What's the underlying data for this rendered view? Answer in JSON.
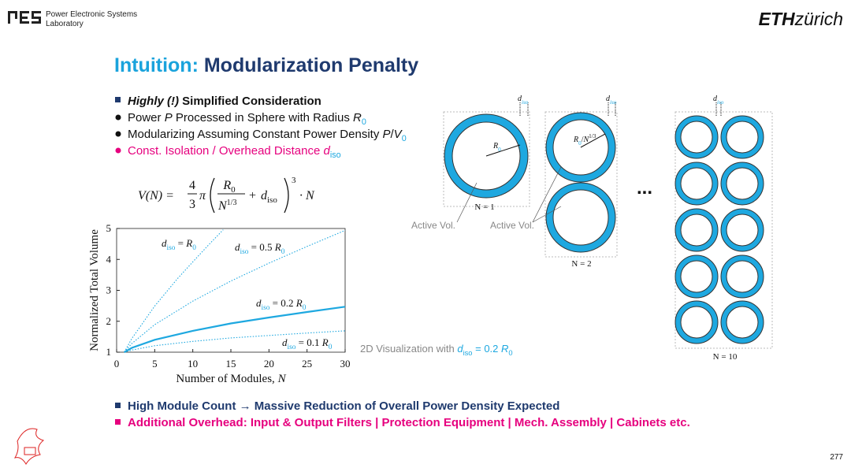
{
  "header": {
    "lab": [
      "Power Electronic Systems",
      "Laboratory"
    ],
    "logo_right": [
      "ETH",
      "zürich"
    ]
  },
  "title": {
    "prefix": "Intuition:",
    "main": "Modularization Penalty"
  },
  "bullets": [
    [
      "Highly (!)",
      " Simplified Consideration"
    ],
    [
      "Power ",
      "P",
      " Processed in Sphere with Radius ",
      "R",
      "0"
    ],
    [
      "Modularizing Assuming Constant Power Density ",
      "P",
      "/",
      "V",
      "0"
    ],
    [
      "Const. Isolation / Overhead Distance ",
      "d",
      "iso"
    ]
  ],
  "formula": {
    "lhs": "V(N) =",
    "num": "4",
    "den": "3",
    "pi": "π",
    "r": "R",
    "r_sub": "0",
    "n": "N",
    "n_exp": "1/3",
    "plus": "+",
    "d": "d",
    "d_sub": "iso",
    "exp": "3",
    "tail": "· N"
  },
  "chart_data": {
    "type": "line",
    "x_label": [
      "Number of Modules, ",
      "N"
    ],
    "y_label": "Normalized Total Volume",
    "xlim": [
      0,
      30
    ],
    "ylim": [
      1,
      5
    ],
    "xticks": [
      0,
      5,
      10,
      15,
      20,
      25,
      30
    ],
    "yticks": [
      1,
      2,
      3,
      4,
      5
    ],
    "color": "#1ea8e0",
    "series": [
      {
        "label": [
          "d",
          "iso",
          " = ",
          "R",
          "0"
        ],
        "style": "dotted",
        "x": [
          1,
          2,
          5,
          8,
          10,
          12,
          14
        ],
        "values": [
          1,
          1.44,
          2.49,
          3.38,
          3.92,
          4.45,
          4.96
        ]
      },
      {
        "label": [
          "d",
          "iso",
          " = 0.5 ",
          "R",
          "0"
        ],
        "style": "dotted",
        "x": [
          1,
          2,
          5,
          10,
          15,
          20,
          25,
          30
        ],
        "values": [
          1,
          1.28,
          1.89,
          2.65,
          3.3,
          3.88,
          4.42,
          4.94
        ]
      },
      {
        "label": [
          "d",
          "iso",
          " = 0.2 ",
          "R",
          "0"
        ],
        "style": "solid",
        "x": [
          1,
          2,
          5,
          10,
          15,
          20,
          25,
          30
        ],
        "values": [
          1,
          1.14,
          1.4,
          1.69,
          1.93,
          2.12,
          2.3,
          2.47
        ]
      },
      {
        "label": [
          "d",
          "iso",
          " = 0.1 ",
          "R",
          "0"
        ],
        "style": "dotted",
        "x": [
          1,
          2,
          5,
          10,
          15,
          20,
          25,
          30
        ],
        "values": [
          1,
          1.07,
          1.21,
          1.35,
          1.46,
          1.54,
          1.62,
          1.69
        ]
      }
    ]
  },
  "visualization_caption": [
    "2D Visualization with ",
    "d",
    "iso",
    " = 0.2 ",
    "R",
    "0"
  ],
  "diagram": {
    "d_iso_labels": [
      [
        "d",
        "iso"
      ],
      [
        "d",
        "iso"
      ],
      [
        "d",
        "iso"
      ]
    ],
    "radius_1": [
      "R",
      "0"
    ],
    "radius_2": [
      "R",
      "0",
      "/",
      "N",
      "1/3"
    ],
    "n_labels": [
      "N = 1",
      "N = 2",
      "N = 10"
    ],
    "active_labels": [
      "Active Vol.",
      "Active Vol."
    ],
    "ellipsis": "..."
  },
  "footer_bullets": [
    "High Module Count → Massive Reduction of Overall Power Density Expected",
    "Additional Overhead: Input & Output Filters | Protection Equipment | Mech. Assembly | Cabinets etc."
  ],
  "page_number": "277"
}
